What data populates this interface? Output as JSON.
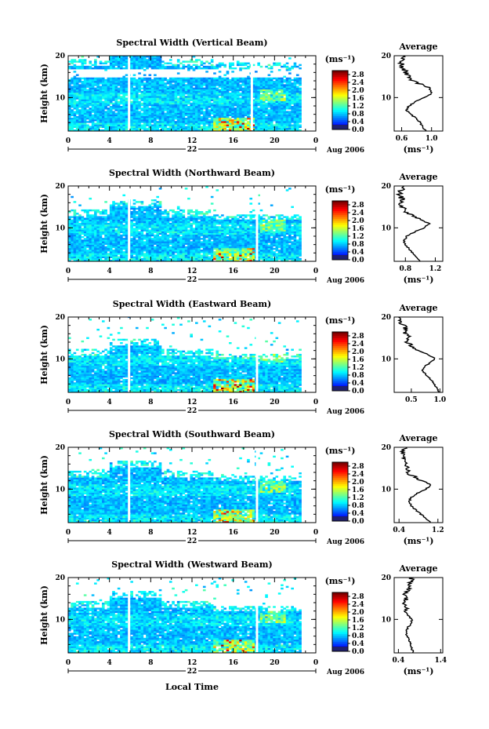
{
  "chart_data": [
    {
      "type": "heatmap",
      "title": "Spectral Width (Vertical Beam)",
      "ylabel": "Height (km)",
      "yticks": [
        "20",
        "10"
      ],
      "ylim": [
        2,
        20
      ],
      "xticks": [
        "0",
        "4",
        "8",
        "12",
        "16",
        "20",
        "0"
      ],
      "xlim": [
        0,
        24
      ],
      "date_day": "22",
      "date_label": "Aug 2006",
      "colorbar": {
        "unit": "(ms⁻¹)",
        "ticks": [
          "2.8",
          "2.4",
          "2.0",
          "1.6",
          "1.2",
          "0.8",
          "0.4",
          "0.0"
        ],
        "range": [
          0,
          3.0
        ]
      },
      "data_gaps_hours": [
        5.9,
        17.8
      ],
      "cloud_top_km": 19,
      "gap_band_km": [
        14.5,
        16.5
      ],
      "average": {
        "title": "Average",
        "xunit": "(ms⁻¹)",
        "xticks": [
          "0.6",
          "1.0"
        ],
        "xlim": [
          0.5,
          1.15
        ],
        "yticks": [
          "20",
          "10"
        ],
        "profile": [
          [
            2,
            0.92
          ],
          [
            3,
            0.88
          ],
          [
            4,
            0.85
          ],
          [
            5,
            0.8
          ],
          [
            6,
            0.72
          ],
          [
            7,
            0.66
          ],
          [
            8,
            0.7
          ],
          [
            9,
            0.78
          ],
          [
            10,
            0.9
          ],
          [
            11,
            1.0
          ],
          [
            12,
            0.98
          ],
          [
            13,
            0.88
          ],
          [
            14,
            0.75
          ],
          [
            15,
            0.7
          ],
          [
            16,
            0.66
          ],
          [
            17,
            0.62
          ],
          [
            18,
            0.6
          ],
          [
            19,
            0.6
          ],
          [
            20,
            0.62
          ]
        ]
      }
    },
    {
      "type": "heatmap",
      "title": "Spectral Width (Northward Beam)",
      "ylabel": "Height (km)",
      "yticks": [
        "20",
        "10"
      ],
      "ylim": [
        2,
        20
      ],
      "xticks": [
        "0",
        "4",
        "8",
        "12",
        "16",
        "20",
        "0"
      ],
      "xlim": [
        0,
        24
      ],
      "date_day": "22",
      "date_label": "Aug 2006",
      "colorbar": {
        "unit": "(ms⁻¹)",
        "ticks": [
          "2.8",
          "2.4",
          "2.0",
          "1.6",
          "1.2",
          "0.8",
          "0.4",
          "0.0"
        ],
        "range": [
          0,
          3.0
        ]
      },
      "data_gaps_hours": [
        5.9,
        18.3
      ],
      "cloud_top_km": 14,
      "gap_band_km": null,
      "average": {
        "title": "Average",
        "xunit": "(ms⁻¹)",
        "xticks": [
          "0.8",
          "1.2"
        ],
        "xlim": [
          0.65,
          1.3
        ],
        "yticks": [
          "20",
          "10"
        ],
        "profile": [
          [
            2,
            1.0
          ],
          [
            3,
            0.95
          ],
          [
            4,
            0.9
          ],
          [
            5,
            0.85
          ],
          [
            6,
            0.8
          ],
          [
            7,
            0.78
          ],
          [
            8,
            0.82
          ],
          [
            9,
            0.92
          ],
          [
            10,
            1.05
          ],
          [
            11,
            1.12
          ],
          [
            12,
            1.0
          ],
          [
            13,
            0.88
          ],
          [
            14,
            0.8
          ],
          [
            15,
            0.76
          ],
          [
            16,
            0.74
          ],
          [
            17,
            0.75
          ],
          [
            18,
            0.72
          ],
          [
            19,
            0.74
          ],
          [
            20,
            0.78
          ]
        ]
      }
    },
    {
      "type": "heatmap",
      "title": "Spectral Width (Eastward Beam)",
      "ylabel": "Height (km)",
      "yticks": [
        "20",
        "10"
      ],
      "ylim": [
        2,
        20
      ],
      "xticks": [
        "0",
        "4",
        "8",
        "12",
        "16",
        "20",
        "0"
      ],
      "xlim": [
        0,
        24
      ],
      "date_day": "22",
      "date_label": "Aug 2006",
      "colorbar": {
        "unit": "(ms⁻¹)",
        "ticks": [
          "2.8",
          "2.4",
          "2.0",
          "1.6",
          "1.2",
          "0.8",
          "0.4",
          "0.0"
        ],
        "range": [
          0,
          3.0
        ]
      },
      "data_gaps_hours": [
        5.9,
        18.3
      ],
      "cloud_top_km": 12,
      "gap_band_km": null,
      "average": {
        "title": "Average",
        "xunit": "",
        "xticks": [
          "0.5",
          "1.0"
        ],
        "xlim": [
          0.2,
          1.05
        ],
        "yticks": [
          "20",
          "10"
        ],
        "profile": [
          [
            2,
            0.98
          ],
          [
            3,
            0.95
          ],
          [
            4,
            0.9
          ],
          [
            5,
            0.85
          ],
          [
            6,
            0.78
          ],
          [
            7,
            0.7
          ],
          [
            8,
            0.72
          ],
          [
            9,
            0.82
          ],
          [
            10,
            0.92
          ],
          [
            11,
            0.8
          ],
          [
            12,
            0.62
          ],
          [
            13,
            0.5
          ],
          [
            14,
            0.42
          ],
          [
            15,
            0.48
          ],
          [
            16,
            0.38
          ],
          [
            17,
            0.42
          ],
          [
            18,
            0.35
          ],
          [
            19,
            0.32
          ],
          [
            20,
            0.3
          ]
        ]
      }
    },
    {
      "type": "heatmap",
      "title": "Spectral Width (Southward Beam)",
      "ylabel": "Height (km)",
      "yticks": [
        "20",
        "10"
      ],
      "ylim": [
        2,
        20
      ],
      "xticks": [
        "0",
        "4",
        "8",
        "12",
        "16",
        "20",
        "0"
      ],
      "xlim": [
        0,
        24
      ],
      "date_day": "22",
      "date_label": "Aug 2006",
      "colorbar": {
        "unit": "(ms⁻¹)",
        "ticks": [
          "2.8",
          "2.4",
          "2.0",
          "1.6",
          "1.2",
          "0.8",
          "0.4",
          "0.0"
        ],
        "range": [
          0,
          3.0
        ]
      },
      "data_gaps_hours": [
        5.9,
        18.3
      ],
      "cloud_top_km": 14,
      "gap_band_km": null,
      "average": {
        "title": "Average",
        "xunit": "(ms⁻¹)",
        "xticks": [
          "0.4",
          "1.2"
        ],
        "xlim": [
          0.3,
          1.3
        ],
        "yticks": [
          "20",
          "10"
        ],
        "profile": [
          [
            2,
            1.05
          ],
          [
            3,
            0.95
          ],
          [
            4,
            0.85
          ],
          [
            5,
            0.75
          ],
          [
            6,
            0.65
          ],
          [
            7,
            0.6
          ],
          [
            8,
            0.65
          ],
          [
            9,
            0.78
          ],
          [
            10,
            0.95
          ],
          [
            11,
            1.05
          ],
          [
            12,
            0.9
          ],
          [
            13,
            0.7
          ],
          [
            14,
            0.55
          ],
          [
            15,
            0.6
          ],
          [
            16,
            0.5
          ],
          [
            17,
            0.52
          ],
          [
            18,
            0.45
          ],
          [
            19,
            0.5
          ],
          [
            20,
            0.55
          ]
        ]
      }
    },
    {
      "type": "heatmap",
      "title": "Spectral Width (Westward Beam)",
      "ylabel": "Height (km)",
      "yticks": [
        "20",
        "10"
      ],
      "ylim": [
        2,
        20
      ],
      "xticks": [
        "0",
        "4",
        "8",
        "12",
        "16",
        "20",
        "0"
      ],
      "xlim": [
        0,
        24
      ],
      "date_day": "22",
      "date_label": "Aug 2006",
      "colorbar": {
        "unit": "(ms⁻¹)",
        "ticks": [
          "2.8",
          "2.4",
          "2.0",
          "1.6",
          "1.2",
          "0.8",
          "0.4",
          "0.0"
        ],
        "range": [
          0,
          3.0
        ]
      },
      "data_gaps_hours": [
        5.9,
        18.3
      ],
      "cloud_top_km": 14,
      "gap_band_km": null,
      "average": {
        "title": "Average",
        "xunit": "(ms⁻¹)",
        "xticks": [
          "0.4",
          "1.4"
        ],
        "xlim": [
          0.3,
          1.45
        ],
        "yticks": [
          "20",
          "10"
        ],
        "profile": [
          [
            2,
            0.75
          ],
          [
            3,
            0.72
          ],
          [
            4,
            0.7
          ],
          [
            5,
            0.66
          ],
          [
            6,
            0.6
          ],
          [
            7,
            0.58
          ],
          [
            8,
            0.62
          ],
          [
            9,
            0.7
          ],
          [
            10,
            0.72
          ],
          [
            11,
            0.62
          ],
          [
            12,
            0.55
          ],
          [
            13,
            0.6
          ],
          [
            14,
            0.52
          ],
          [
            15,
            0.6
          ],
          [
            16,
            0.58
          ],
          [
            17,
            0.66
          ],
          [
            18,
            0.62
          ],
          [
            19,
            0.68
          ],
          [
            20,
            0.72
          ]
        ]
      }
    }
  ],
  "xlabel": "Local Time"
}
